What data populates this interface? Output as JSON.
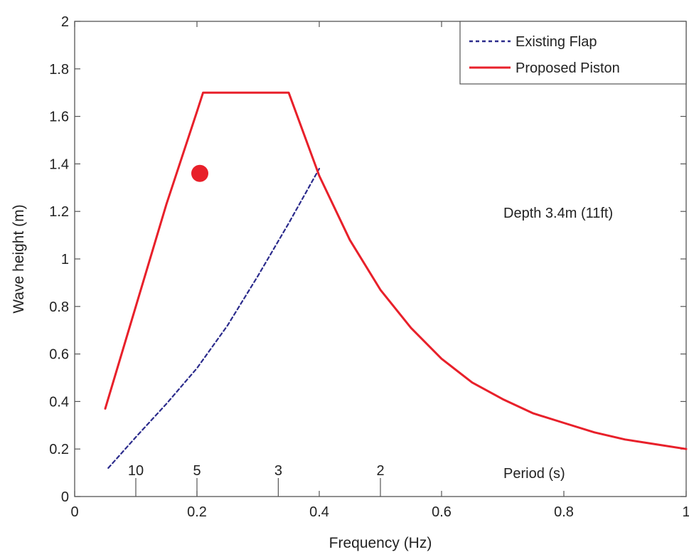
{
  "chart_data": {
    "type": "line",
    "xlabel": "Frequency (Hz)",
    "ylabel": "Wave height (m)",
    "xlim": [
      0,
      1
    ],
    "ylim": [
      0,
      2
    ],
    "xticks": [
      {
        "value": 0,
        "label": "0"
      },
      {
        "value": 0.2,
        "label": "0.2"
      },
      {
        "value": 0.4,
        "label": "0.4"
      },
      {
        "value": 0.6,
        "label": "0.6"
      },
      {
        "value": 0.8,
        "label": "0.8"
      },
      {
        "value": 1,
        "label": "1"
      }
    ],
    "yticks": [
      {
        "value": 0,
        "label": "0"
      },
      {
        "value": 0.2,
        "label": "0.2"
      },
      {
        "value": 0.4,
        "label": "0.4"
      },
      {
        "value": 0.6,
        "label": "0.6"
      },
      {
        "value": 0.8,
        "label": "0.8"
      },
      {
        "value": 1,
        "label": "1"
      },
      {
        "value": 1.2,
        "label": "1.2"
      },
      {
        "value": 1.4,
        "label": "1.4"
      },
      {
        "value": 1.6,
        "label": "1.6"
      },
      {
        "value": 1.8,
        "label": "1.8"
      },
      {
        "value": 2,
        "label": "2"
      }
    ],
    "period_ticks": [
      {
        "freq": 0.1,
        "label": "10"
      },
      {
        "freq": 0.2,
        "label": "5"
      },
      {
        "freq": 0.333,
        "label": "3"
      },
      {
        "freq": 0.5,
        "label": "2"
      }
    ],
    "period_label": "Period (s)",
    "annotation": "Depth 3.4m (11ft)",
    "legend_position": "top-right",
    "grid": false,
    "series": [
      {
        "name": "Existing Flap",
        "color": "#2b2b8c",
        "style": "dashed",
        "x": [
          0.055,
          0.1,
          0.15,
          0.2,
          0.25,
          0.3,
          0.35,
          0.4
        ],
        "y": [
          0.12,
          0.25,
          0.39,
          0.54,
          0.72,
          0.93,
          1.15,
          1.38
        ]
      },
      {
        "name": "Proposed Piston",
        "color": "#e8202a",
        "style": "solid",
        "x": [
          0.05,
          0.1,
          0.15,
          0.2,
          0.21,
          0.25,
          0.3,
          0.35,
          0.4,
          0.45,
          0.5,
          0.55,
          0.6,
          0.65,
          0.7,
          0.75,
          0.8,
          0.85,
          0.9,
          0.95,
          1.0
        ],
        "y": [
          0.37,
          0.8,
          1.23,
          1.62,
          1.7,
          1.7,
          1.7,
          1.7,
          1.35,
          1.08,
          0.87,
          0.71,
          0.58,
          0.48,
          0.41,
          0.35,
          0.31,
          0.27,
          0.24,
          0.22,
          0.2
        ]
      }
    ],
    "marker": {
      "x": 0.2,
      "y": 1.36,
      "color": "#e8202a"
    }
  }
}
